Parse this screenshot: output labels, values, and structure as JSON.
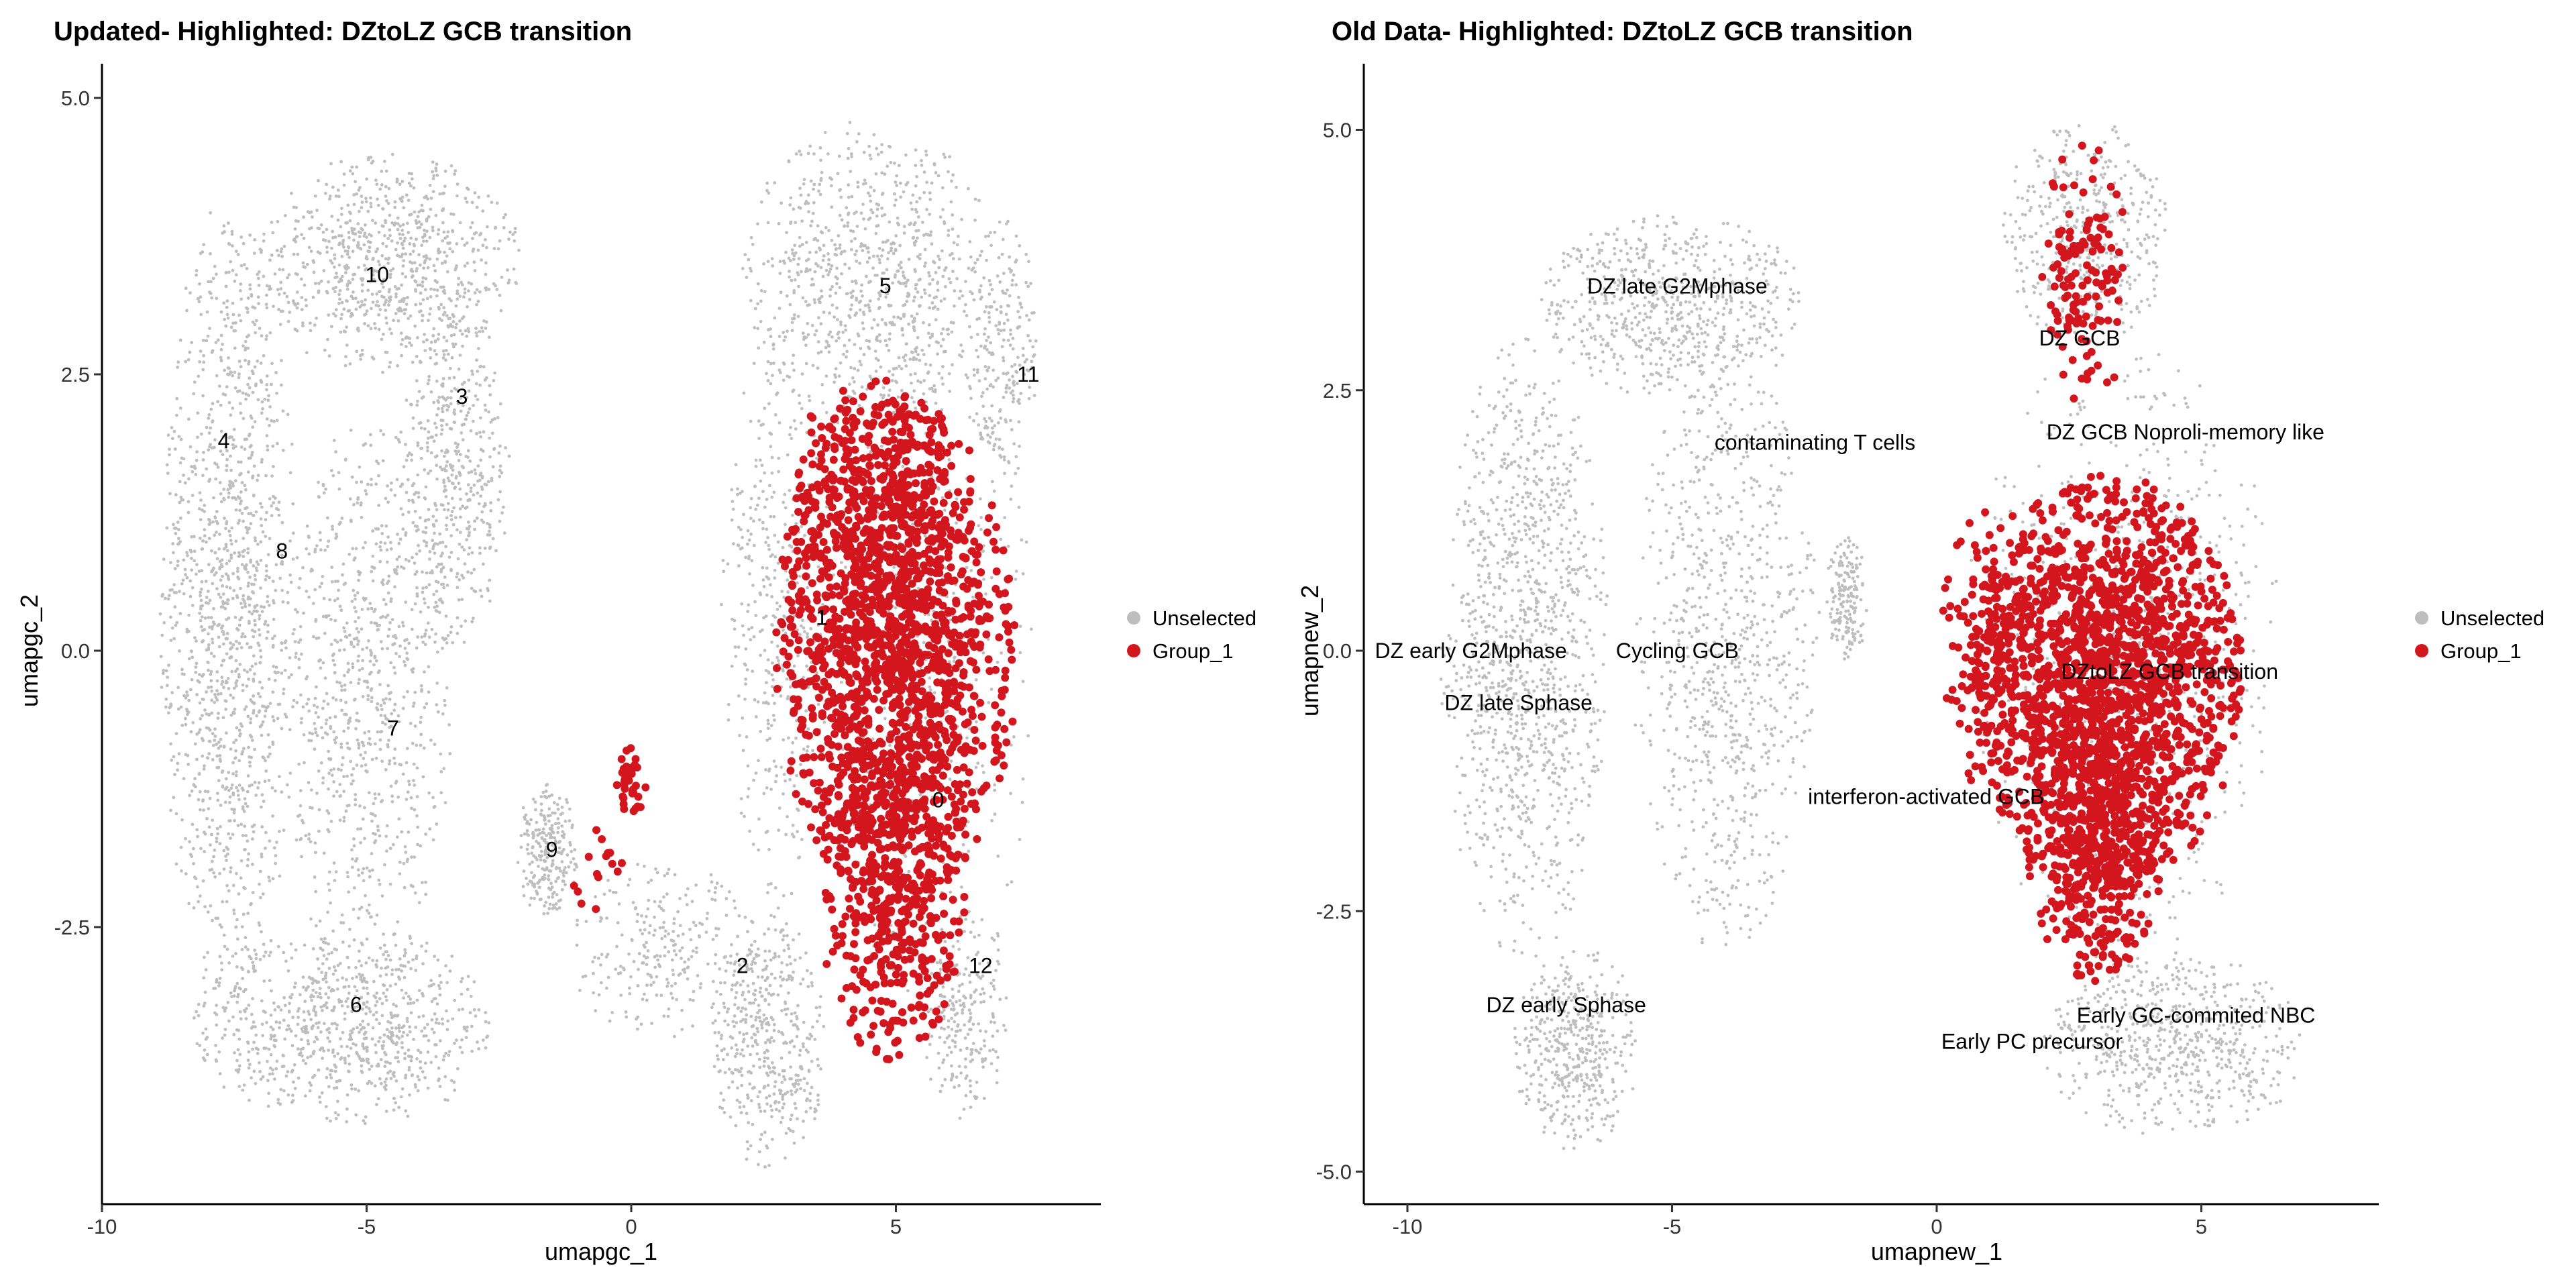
{
  "chart_data": [
    {
      "type": "scatter",
      "title": "Updated- Highlighted: DZtoLZ GCB transition",
      "xlabel": "umapgc_1",
      "ylabel": "umapgc_2",
      "xlim": [
        -10,
        8.9
      ],
      "ylim": [
        -5.0,
        5.3
      ],
      "xticks": [
        {
          "v": -10,
          "t": "-10"
        },
        {
          "v": -5,
          "t": "-5"
        },
        {
          "v": 0,
          "t": "0"
        },
        {
          "v": 5,
          "t": "5"
        }
      ],
      "yticks": [
        {
          "v": -2.5,
          "t": "-2.5"
        },
        {
          "v": 0,
          "t": "0.0"
        },
        {
          "v": 2.5,
          "t": "2.5"
        },
        {
          "v": 5,
          "t": "5.0"
        }
      ],
      "legend": {
        "position": "right",
        "entries": [
          {
            "name": "Unselected",
            "color": "#bebebe"
          },
          {
            "name": "Group_1",
            "color": "#d3161e"
          }
        ]
      },
      "labels": [
        {
          "t": "10",
          "x": -4.8,
          "y": 3.4
        },
        {
          "t": "3",
          "x": -3.2,
          "y": 2.3
        },
        {
          "t": "4",
          "x": -7.7,
          "y": 1.9
        },
        {
          "t": "8",
          "x": -6.6,
          "y": 0.9
        },
        {
          "t": "7",
          "x": -4.5,
          "y": -0.7
        },
        {
          "t": "6",
          "x": -5.2,
          "y": -3.2
        },
        {
          "t": "9",
          "x": -1.5,
          "y": -1.8
        },
        {
          "t": "2",
          "x": 2.1,
          "y": -2.85
        },
        {
          "t": "5",
          "x": 4.8,
          "y": 3.3
        },
        {
          "t": "11",
          "x": 7.5,
          "y": 2.5
        },
        {
          "t": "1",
          "x": 3.6,
          "y": 0.3
        },
        {
          "t": "0",
          "x": 5.8,
          "y": -1.35
        },
        {
          "t": "12",
          "x": 6.6,
          "y": -2.85
        }
      ],
      "unselected_regions": [
        [
          -7.6,
          0.4,
          1.3,
          3.7,
          1300
        ],
        [
          -4.6,
          3.5,
          2.6,
          1.0,
          800
        ],
        [
          -3.4,
          1.6,
          1.1,
          1.6,
          500
        ],
        [
          -5.0,
          -0.5,
          1.6,
          2.6,
          800
        ],
        [
          -5.4,
          -3.4,
          2.9,
          0.9,
          800
        ],
        [
          -1.6,
          -1.8,
          0.6,
          0.6,
          250
        ],
        [
          0.6,
          -2.7,
          1.8,
          0.8,
          250
        ],
        [
          2.6,
          -3.5,
          1.1,
          1.2,
          450
        ],
        [
          4.5,
          3.4,
          2.4,
          1.4,
          800
        ],
        [
          2.8,
          0.3,
          1.1,
          2.6,
          400
        ],
        [
          5.6,
          0.0,
          2.0,
          3.5,
          500
        ],
        [
          7.0,
          2.7,
          0.7,
          1.2,
          220
        ],
        [
          6.3,
          -3.3,
          0.8,
          1.0,
          220
        ]
      ],
      "group_regions": [
        [
          5.0,
          0.0,
          2.3,
          2.3,
          1500
        ],
        [
          4.9,
          -2.2,
          1.4,
          1.5,
          450
        ],
        [
          4.6,
          1.5,
          1.6,
          1.0,
          250
        ],
        [
          0.0,
          -1.2,
          0.3,
          0.35,
          35
        ],
        [
          -0.6,
          -2.1,
          0.9,
          0.5,
          15
        ]
      ]
    },
    {
      "type": "scatter",
      "title": "Old Data- Highlighted: DZtoLZ GCB transition",
      "xlabel": "umapnew_1",
      "ylabel": "umapnew_2",
      "xlim": [
        -10.8,
        8.3
      ],
      "ylim": [
        -5.2,
        5.6
      ],
      "xticks": [
        {
          "v": -10,
          "t": "-10"
        },
        {
          "v": -5,
          "t": "-5"
        },
        {
          "v": 0,
          "t": "0"
        },
        {
          "v": 5,
          "t": "5"
        }
      ],
      "yticks": [
        {
          "v": -5,
          "t": "-5.0"
        },
        {
          "v": -2.5,
          "t": "-2.5"
        },
        {
          "v": 0,
          "t": "0.0"
        },
        {
          "v": 2.5,
          "t": "2.5"
        },
        {
          "v": 5,
          "t": "5.0"
        }
      ],
      "legend": {
        "position": "right",
        "entries": [
          {
            "name": "Unselected",
            "color": "#bebebe"
          },
          {
            "name": "Group_1",
            "color": "#d3161e"
          }
        ]
      },
      "labels": [
        {
          "t": "DZ late G2Mphase",
          "x": -4.9,
          "y": 3.5
        },
        {
          "t": "DZ GCB",
          "x": 2.7,
          "y": 3.0
        },
        {
          "t": "contaminating T cells",
          "x": -2.3,
          "y": 2.0
        },
        {
          "t": "DZ GCB Noproli-memory like",
          "x": 4.7,
          "y": 2.1
        },
        {
          "t": "DZ early G2Mphase",
          "x": -8.8,
          "y": 0.0
        },
        {
          "t": "Cycling GCB",
          "x": -4.9,
          "y": 0.0
        },
        {
          "t": "DZ late Sphase",
          "x": -7.9,
          "y": -0.5
        },
        {
          "t": "DZtoLZ GCB transition",
          "x": 4.4,
          "y": -0.2
        },
        {
          "t": "interferon-activated GCB",
          "x": -0.2,
          "y": -1.4
        },
        {
          "t": "DZ early  Sphase",
          "x": -7.0,
          "y": -3.4
        },
        {
          "t": "Early GC-commited NBC",
          "x": 4.9,
          "y": -3.5
        },
        {
          "t": "Early PC precursor",
          "x": 1.8,
          "y": -3.75
        }
      ],
      "unselected_regions": [
        [
          -7.8,
          0.0,
          1.6,
          3.0,
          1100
        ],
        [
          -5.0,
          3.3,
          2.6,
          0.9,
          650
        ],
        [
          -4.0,
          0.0,
          1.8,
          2.9,
          800
        ],
        [
          -6.8,
          -3.8,
          1.2,
          1.0,
          450
        ],
        [
          -1.7,
          0.5,
          0.4,
          0.6,
          180
        ],
        [
          2.8,
          4.0,
          1.6,
          1.1,
          450
        ],
        [
          3.5,
          0.0,
          3.0,
          3.0,
          700
        ],
        [
          4.5,
          -3.8,
          2.5,
          0.9,
          650
        ]
      ],
      "group_regions": [
        [
          3.2,
          -0.3,
          2.6,
          2.0,
          1700
        ],
        [
          3.0,
          -1.8,
          1.3,
          1.4,
          450
        ],
        [
          2.8,
          3.6,
          0.9,
          1.3,
          130
        ],
        [
          1.0,
          0.0,
          1.0,
          1.5,
          130
        ]
      ]
    }
  ]
}
